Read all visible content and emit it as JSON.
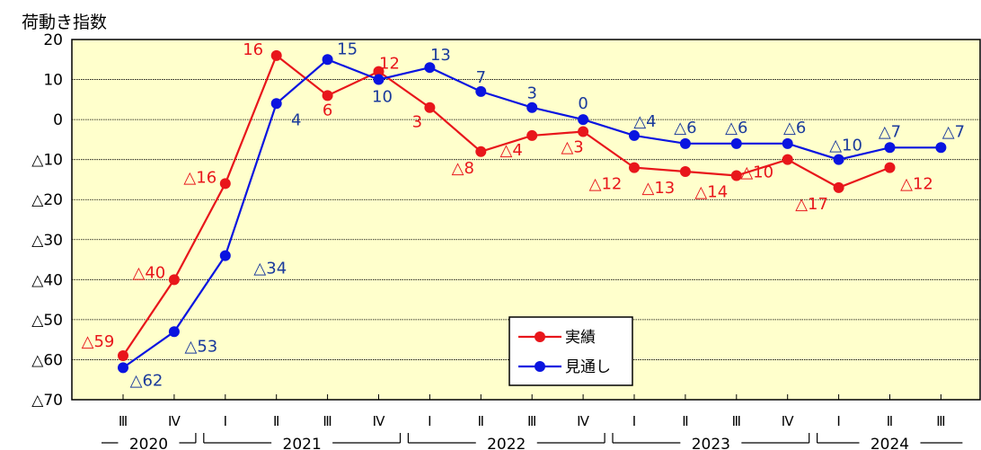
{
  "chart_data": {
    "type": "line",
    "title": "荷動き指数",
    "ylim": [
      -70,
      20
    ],
    "yticks": [
      20,
      10,
      0,
      -10,
      -20,
      -30,
      -40,
      -50,
      -60,
      -70
    ],
    "yticklabels": [
      "20",
      "10",
      "0",
      "△10",
      "△20",
      "△30",
      "△40",
      "△50",
      "△60",
      "△70"
    ],
    "grid": true,
    "quarters": [
      "Ⅲ",
      "Ⅳ",
      "Ⅰ",
      "Ⅱ",
      "Ⅲ",
      "Ⅳ",
      "Ⅰ",
      "Ⅱ",
      "Ⅲ",
      "Ⅳ",
      "Ⅰ",
      "Ⅱ",
      "Ⅲ",
      "Ⅳ",
      "Ⅰ",
      "Ⅱ",
      "Ⅲ"
    ],
    "years": [
      {
        "label": "2020",
        "start": 0,
        "end": 1
      },
      {
        "label": "2021",
        "start": 2,
        "end": 5
      },
      {
        "label": "2022",
        "start": 6,
        "end": 9
      },
      {
        "label": "2023",
        "start": 10,
        "end": 13
      },
      {
        "label": "2024",
        "start": 14,
        "end": 16
      }
    ],
    "series": [
      {
        "name": "実績",
        "color": "#e8161b",
        "values": [
          -59,
          -40,
          -16,
          16,
          6,
          12,
          3,
          -8,
          -4,
          -3,
          -12,
          -13,
          -14,
          -10,
          -17,
          -12
        ],
        "labels": [
          "△59",
          "△40",
          "△16",
          "16",
          "6",
          "12",
          "3",
          "△8",
          "△4",
          "△3",
          "△12",
          "△13",
          "△14",
          "△10",
          "△17",
          "△12"
        ]
      },
      {
        "name": "見通し",
        "color": "#0a14e0",
        "values": [
          -62,
          -53,
          -34,
          4,
          15,
          10,
          13,
          7,
          3,
          0,
          -4,
          -6,
          -6,
          -6,
          -10,
          -7,
          -7
        ],
        "labels": [
          "△62",
          "△53",
          "△34",
          "4",
          "15",
          "10",
          "13",
          "7",
          "3",
          "0",
          "△4",
          "△6",
          "△6",
          "△6",
          "△10",
          "△7",
          "△7"
        ]
      }
    ],
    "legend": "center-bottom",
    "colors": {
      "plot_bg": "#ffffcc",
      "label_red": "#e8161b",
      "label_blue": "#1a3a9c"
    }
  }
}
